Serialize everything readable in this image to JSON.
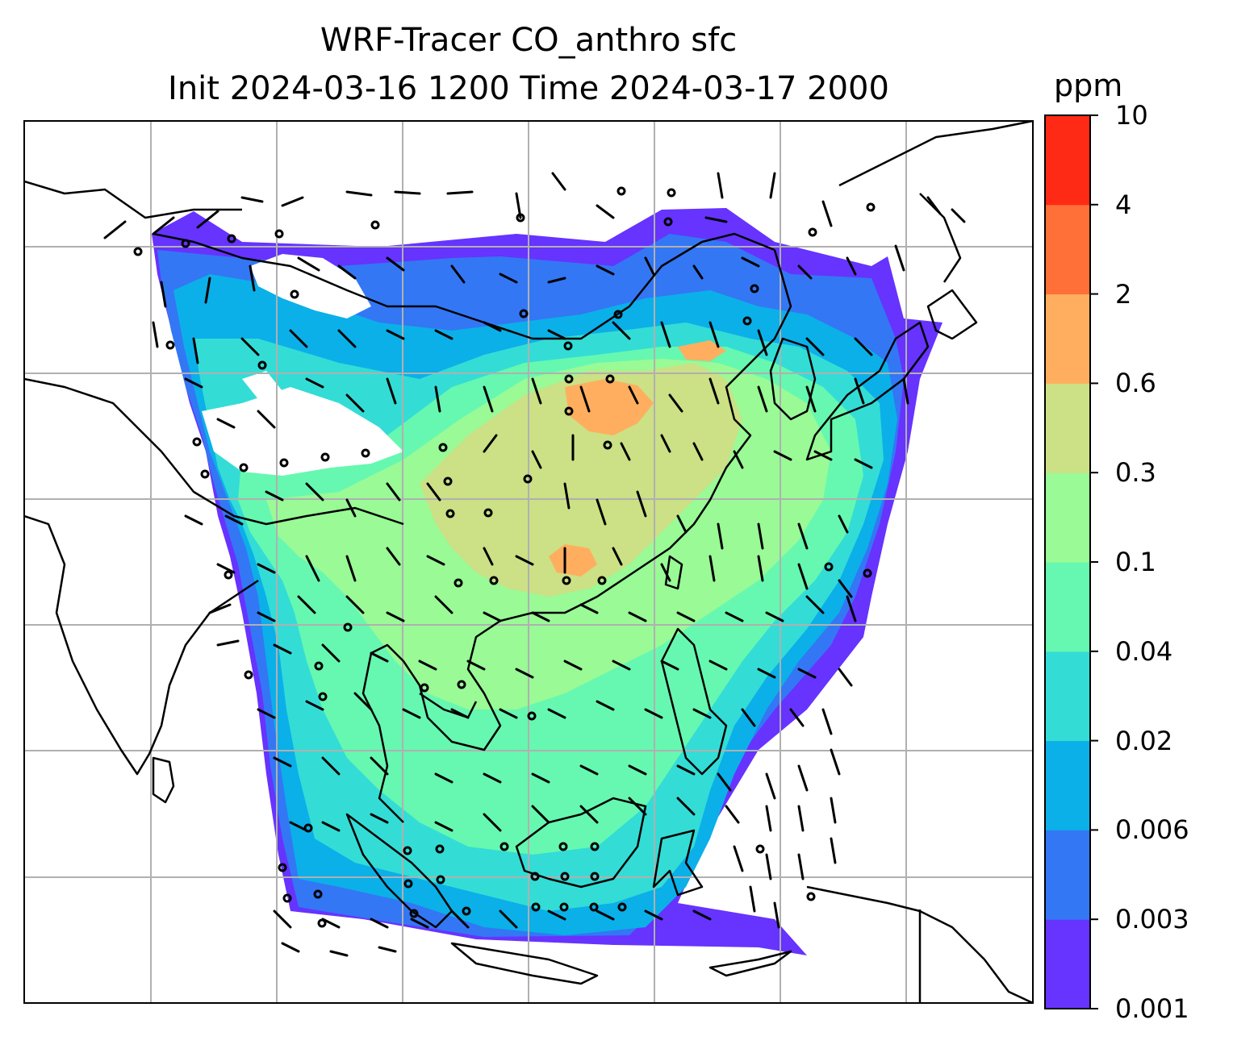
{
  "title": "WRF-Tracer CO_anthro sfc",
  "subtitle": "Init 2024-03-16 1200 Time 2024-03-17 2000",
  "colorbar": {
    "unit": "ppm",
    "levels": [
      "0.001",
      "0.003",
      "0.006",
      "0.02",
      "0.04",
      "0.1",
      "0.3",
      "0.6",
      "2",
      "4",
      "10"
    ],
    "colors": [
      "#6633ff",
      "#3377f5",
      "#0bb0e8",
      "#33ddd6",
      "#66f8b0",
      "#99fa96",
      "#cce085",
      "#ffae5f",
      "#ff7038",
      "#ff2a15"
    ]
  },
  "colors": {
    "violet": "#6633ff",
    "blue": "#3377f5",
    "sky": "#0bb0e8",
    "cyan": "#33ddd6",
    "aqua": "#66f8b0",
    "green": "#99fa96",
    "olive": "#cce085",
    "orange": "#ffae5f"
  }
}
